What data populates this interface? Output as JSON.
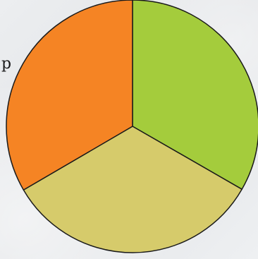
{
  "stray_text": "p",
  "chart_data": {
    "type": "pie",
    "title": "",
    "slices": [
      {
        "value": 33.3,
        "color": "#a4cc3c"
      },
      {
        "value": 33.3,
        "color": "#d6cb6b"
      },
      {
        "value": 33.4,
        "color": "#f58424"
      }
    ],
    "start_angle_deg": -90,
    "legend": "none"
  }
}
